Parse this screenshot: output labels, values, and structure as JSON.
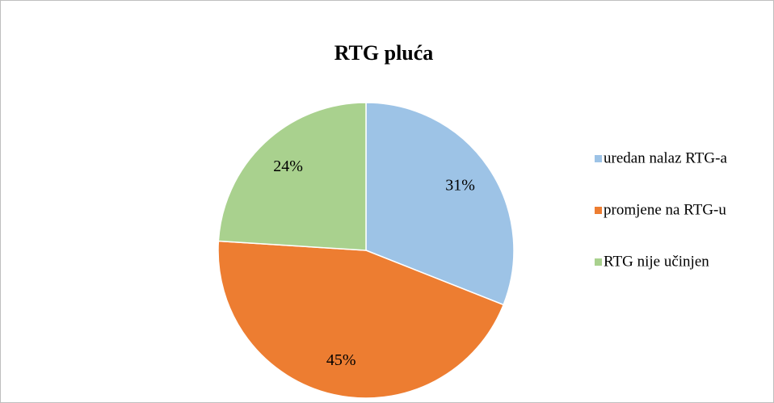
{
  "chart_data": {
    "type": "pie",
    "title": "RTG pluća",
    "categories": [
      "uredan nalaz RTG-a",
      "promjene na RTG-u",
      "RTG nije učinjen"
    ],
    "values": [
      31,
      45,
      24
    ],
    "value_labels": [
      "31%",
      "45%",
      "24%"
    ],
    "colors": [
      "#9dc3e6",
      "#ed7d31",
      "#a9d18e"
    ],
    "legend": "right"
  }
}
